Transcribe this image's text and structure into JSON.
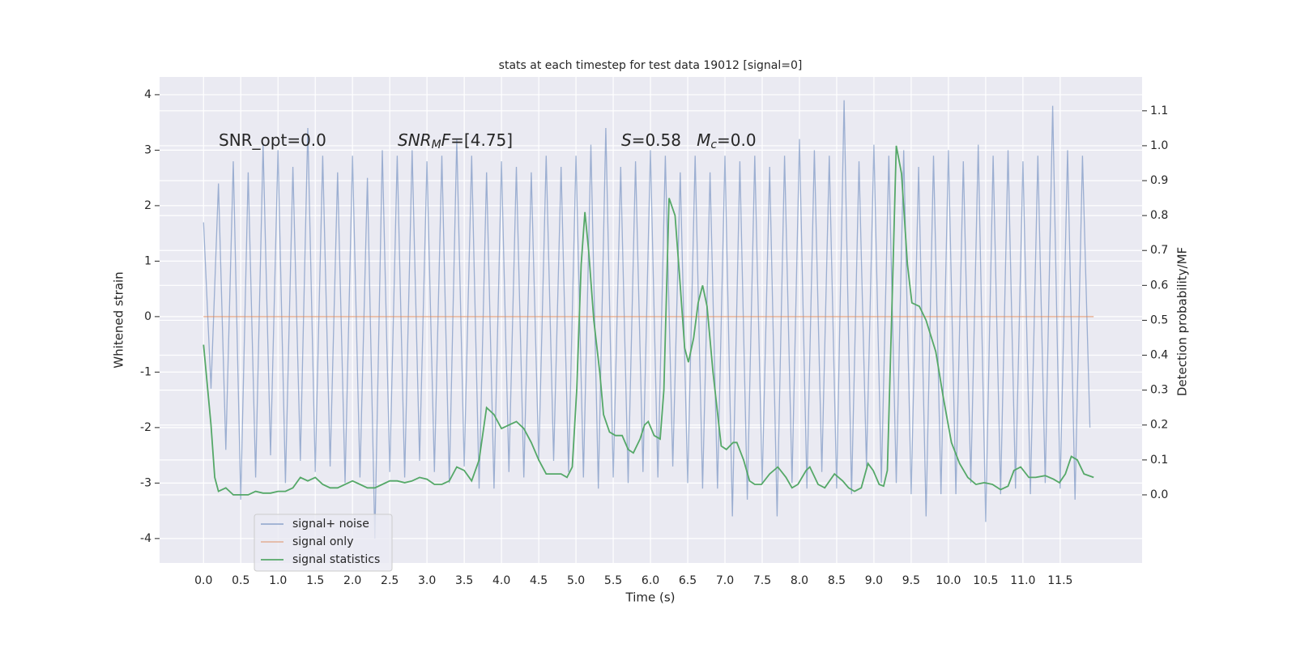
{
  "chart_data": {
    "type": "line",
    "title": "stats at each timestep for test data 19012 [signal=0]",
    "xlabel": "Time (s)",
    "ylabel": "Whitened strain",
    "y2label": "Detection probability/MF",
    "annotations": [
      [
        {
          "text": "SNR_opt=0.0"
        }
      ],
      [
        {
          "text": "SNR",
          "italic": true
        },
        {
          "text": "M",
          "italic": true,
          "sub": true
        },
        {
          "text": "F",
          "italic": true
        },
        {
          "text": "=[4.75]"
        }
      ],
      [
        {
          "text": "S",
          "italic": true
        },
        {
          "text": "=0.58   "
        },
        {
          "text": "M",
          "italic": true
        },
        {
          "text": "c",
          "italic": true,
          "sub": true
        },
        {
          "text": "=0.0"
        }
      ]
    ],
    "xlim": [
      -0.59,
      12.6
    ],
    "ylim": [
      -4.44,
      4.32
    ],
    "y2lim": [
      -0.195,
      1.197
    ],
    "xticks": [
      {
        "value": 0,
        "label": "0.0"
      },
      0.5,
      {
        "value": 1,
        "label": "1.0"
      },
      1.5,
      {
        "value": 2,
        "label": "2.0"
      },
      2.5,
      {
        "value": 3,
        "label": "3.0"
      },
      3.5,
      {
        "value": 4,
        "label": "4.0"
      },
      4.5,
      {
        "value": 5,
        "label": "5.0"
      },
      5.5,
      {
        "value": 6,
        "label": "6.0"
      },
      6.5,
      {
        "value": 7,
        "label": "7.0"
      },
      7.5,
      {
        "value": 8,
        "label": "8.0"
      },
      8.5,
      {
        "value": 9,
        "label": "9.0"
      },
      9.5,
      {
        "value": 10,
        "label": "10.0"
      },
      10.5,
      {
        "value": 11,
        "label": "11.0"
      },
      11.5
    ],
    "yticks": [
      -4,
      -3,
      -2,
      -1,
      0,
      1,
      2,
      3,
      4
    ],
    "y2ticks": [
      {
        "value": 0,
        "label": "0.0"
      },
      0.1,
      0.2,
      0.3,
      0.4,
      0.5,
      0.6,
      0.7,
      0.8,
      0.9,
      {
        "value": 1,
        "label": "1.0"
      },
      1.1
    ],
    "grid": true,
    "legend": "lower left",
    "series": [
      {
        "name": "signal+ noise",
        "color": "#4c72b0",
        "opacity": 0.5,
        "x": [
          0,
          0.1,
          0.2,
          0.3,
          0.4,
          0.5,
          0.6,
          0.7,
          0.8,
          0.9,
          1,
          1.1,
          1.2,
          1.3,
          1.4,
          1.5,
          1.6,
          1.7,
          1.8,
          1.9,
          2,
          2.1,
          2.2,
          2.3,
          2.4,
          2.5,
          2.6,
          2.7,
          2.8,
          2.9,
          3,
          3.1,
          3.2,
          3.3,
          3.4,
          3.5,
          3.6,
          3.7,
          3.8,
          3.9,
          4,
          4.1,
          4.2,
          4.3,
          4.4,
          4.5,
          4.6,
          4.7,
          4.8,
          4.9,
          5,
          5.1,
          5.2,
          5.3,
          5.4,
          5.5,
          5.6,
          5.7,
          5.8,
          5.9,
          6,
          6.1,
          6.2,
          6.3,
          6.4,
          6.5,
          6.6,
          6.7,
          6.8,
          6.9,
          7,
          7.1,
          7.2,
          7.3,
          7.4,
          7.5,
          7.6,
          7.7,
          7.8,
          7.9,
          8,
          8.1,
          8.2,
          8.3,
          8.4,
          8.5,
          8.6,
          8.7,
          8.8,
          8.9,
          9,
          9.1,
          9.2,
          9.3,
          9.4,
          9.5,
          9.6,
          9.7,
          9.8,
          9.9,
          10,
          10.1,
          10.2,
          10.3,
          10.4,
          10.5,
          10.6,
          10.7,
          10.8,
          10.9,
          11,
          11.1,
          11.2,
          11.3,
          11.4,
          11.5,
          11.6,
          11.7,
          11.8,
          11.9
        ],
        "values": [
          1.7,
          -1.3,
          2.4,
          -2.4,
          2.8,
          -3.3,
          2.6,
          -2.9,
          3.1,
          -2.5,
          3.0,
          -3.0,
          2.7,
          -2.6,
          3.4,
          -2.8,
          2.9,
          -2.7,
          2.6,
          -3.0,
          2.9,
          -2.9,
          2.5,
          -4.0,
          3.0,
          -2.8,
          2.9,
          -2.9,
          3.0,
          -2.6,
          2.8,
          -2.8,
          2.9,
          -3.0,
          3.2,
          -2.7,
          2.9,
          -3.1,
          2.6,
          -3.1,
          2.8,
          -2.8,
          2.7,
          -2.9,
          2.6,
          -2.6,
          2.9,
          -2.6,
          2.7,
          -2.8,
          2.9,
          -2.9,
          3.1,
          -3.1,
          3.4,
          -2.9,
          2.7,
          -3.0,
          2.8,
          -2.8,
          3.0,
          -2.9,
          2.9,
          -2.7,
          2.6,
          -3.0,
          2.9,
          -3.1,
          2.6,
          -3.1,
          2.9,
          -3.6,
          2.8,
          -3.3,
          2.9,
          -3.0,
          2.7,
          -3.6,
          2.9,
          -3.0,
          3.2,
          -3.1,
          3.0,
          -2.8,
          2.9,
          -3.1,
          3.9,
          -3.2,
          2.8,
          -2.7,
          3.1,
          -3.0,
          2.9,
          -3.0,
          3.0,
          -3.2,
          2.7,
          -3.6,
          2.9,
          -3.2,
          3.0,
          -3.2,
          2.8,
          -3.0,
          3.1,
          -3.7,
          2.9,
          -3.2,
          3.0,
          -3.1,
          2.8,
          -3.2,
          2.9,
          -3.0,
          3.8,
          -3.1,
          3.0,
          -3.3,
          2.9,
          -2.0
        ]
      },
      {
        "name": "signal only",
        "color": "#dd8452",
        "opacity": 0.5,
        "x": [
          0,
          11.95
        ],
        "values": [
          0,
          0
        ]
      },
      {
        "name": "signal statistics",
        "color": "#55a868",
        "axis": "y2",
        "x": [
          0,
          0.1,
          0.15,
          0.2,
          0.3,
          0.4,
          0.6,
          0.7,
          0.8,
          0.9,
          1.0,
          1.1,
          1.2,
          1.3,
          1.4,
          1.5,
          1.6,
          1.7,
          1.8,
          2.0,
          2.1,
          2.2,
          2.3,
          2.4,
          2.5,
          2.6,
          2.7,
          2.8,
          2.9,
          3.0,
          3.1,
          3.2,
          3.3,
          3.4,
          3.5,
          3.6,
          3.7,
          3.8,
          3.9,
          4.0,
          4.1,
          4.2,
          4.3,
          4.4,
          4.5,
          4.6,
          4.7,
          4.8,
          4.88,
          4.95,
          5.01,
          5.07,
          5.12,
          5.17,
          5.24,
          5.32,
          5.37,
          5.45,
          5.53,
          5.62,
          5.7,
          5.77,
          5.86,
          5.92,
          5.97,
          6.05,
          6.13,
          6.18,
          6.25,
          6.33,
          6.4,
          6.46,
          6.51,
          6.58,
          6.64,
          6.7,
          6.76,
          6.84,
          6.95,
          7.02,
          7.11,
          7.16,
          7.25,
          7.33,
          7.4,
          7.49,
          7.6,
          7.71,
          7.82,
          7.9,
          7.98,
          8.09,
          8.14,
          8.25,
          8.34,
          8.47,
          8.58,
          8.66,
          8.74,
          8.83,
          8.92,
          8.99,
          9.07,
          9.13,
          9.18,
          9.25,
          9.3,
          9.37,
          9.45,
          9.51,
          9.61,
          9.7,
          9.83,
          9.93,
          10.04,
          10.15,
          10.26,
          10.37,
          10.48,
          10.59,
          10.7,
          10.8,
          10.88,
          10.97,
          11.08,
          11.17,
          11.3,
          11.41,
          11.49,
          11.57,
          11.65,
          11.73,
          11.82,
          11.95
        ],
        "values": [
          0.43,
          0.2,
          0.05,
          0.01,
          0.02,
          0,
          0,
          0.01,
          0.005,
          0.005,
          0.01,
          0.01,
          0.02,
          0.05,
          0.04,
          0.05,
          0.03,
          0.02,
          0.02,
          0.04,
          0.03,
          0.02,
          0.02,
          0.03,
          0.04,
          0.04,
          0.035,
          0.04,
          0.05,
          0.045,
          0.03,
          0.03,
          0.04,
          0.08,
          0.07,
          0.04,
          0.1,
          0.25,
          0.23,
          0.19,
          0.2,
          0.21,
          0.19,
          0.15,
          0.1,
          0.06,
          0.06,
          0.06,
          0.05,
          0.08,
          0.3,
          0.66,
          0.81,
          0.7,
          0.5,
          0.35,
          0.23,
          0.18,
          0.17,
          0.17,
          0.13,
          0.12,
          0.16,
          0.2,
          0.21,
          0.17,
          0.16,
          0.3,
          0.85,
          0.8,
          0.6,
          0.42,
          0.38,
          0.45,
          0.55,
          0.6,
          0.54,
          0.35,
          0.14,
          0.13,
          0.15,
          0.15,
          0.1,
          0.04,
          0.03,
          0.03,
          0.06,
          0.08,
          0.05,
          0.02,
          0.03,
          0.07,
          0.08,
          0.03,
          0.02,
          0.06,
          0.04,
          0.02,
          0.01,
          0.02,
          0.09,
          0.07,
          0.03,
          0.025,
          0.07,
          0.6,
          1.0,
          0.92,
          0.66,
          0.55,
          0.54,
          0.5,
          0.41,
          0.28,
          0.15,
          0.09,
          0.05,
          0.03,
          0.035,
          0.03,
          0.015,
          0.025,
          0.07,
          0.08,
          0.05,
          0.05,
          0.055,
          0.045,
          0.035,
          0.06,
          0.11,
          0.1,
          0.06,
          0.05
        ]
      }
    ]
  }
}
